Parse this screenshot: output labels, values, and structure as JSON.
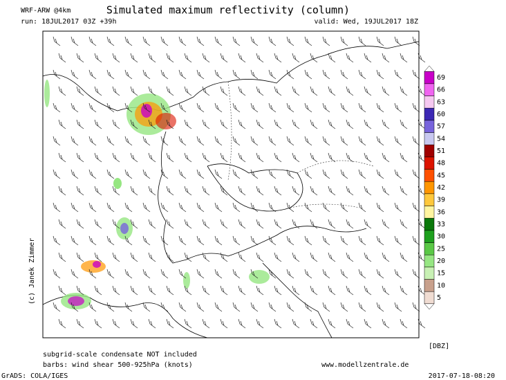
{
  "header": {
    "model": "WRF-ARW @4km",
    "title": "Simulated maximum reflectivity (column)",
    "run": "run: 18JUL2017 03Z +39h",
    "valid": "valid: Wed, 19JUL2017 18Z"
  },
  "credit": "(c) Janek Zimmer",
  "colorbar": {
    "unit": "[DBZ]",
    "levels": [
      5,
      10,
      15,
      20,
      25,
      30,
      33,
      36,
      39,
      42,
      45,
      48,
      51,
      54,
      57,
      60,
      63,
      66,
      69
    ],
    "colors": [
      "#f0dcd2",
      "#c8a08c",
      "#c8f0b4",
      "#96e682",
      "#5ac846",
      "#1ea01e",
      "#0a780a",
      "#fff5a0",
      "#ffc83c",
      "#ff9600",
      "#ff5000",
      "#dc1400",
      "#a00000",
      "#c8c8f0",
      "#7864dc",
      "#3c28b4",
      "#f5c8f0",
      "#f064f0",
      "#c800c8"
    ]
  },
  "footer": {
    "note": "subgrid-scale condensate NOT included",
    "barbs": "barbs: wind shear 500-925hPa (knots)",
    "site": "www.modellzentrale.de",
    "software": "GrADS: COLA/IGES",
    "timestamp": "2017-07-18-08:20"
  }
}
